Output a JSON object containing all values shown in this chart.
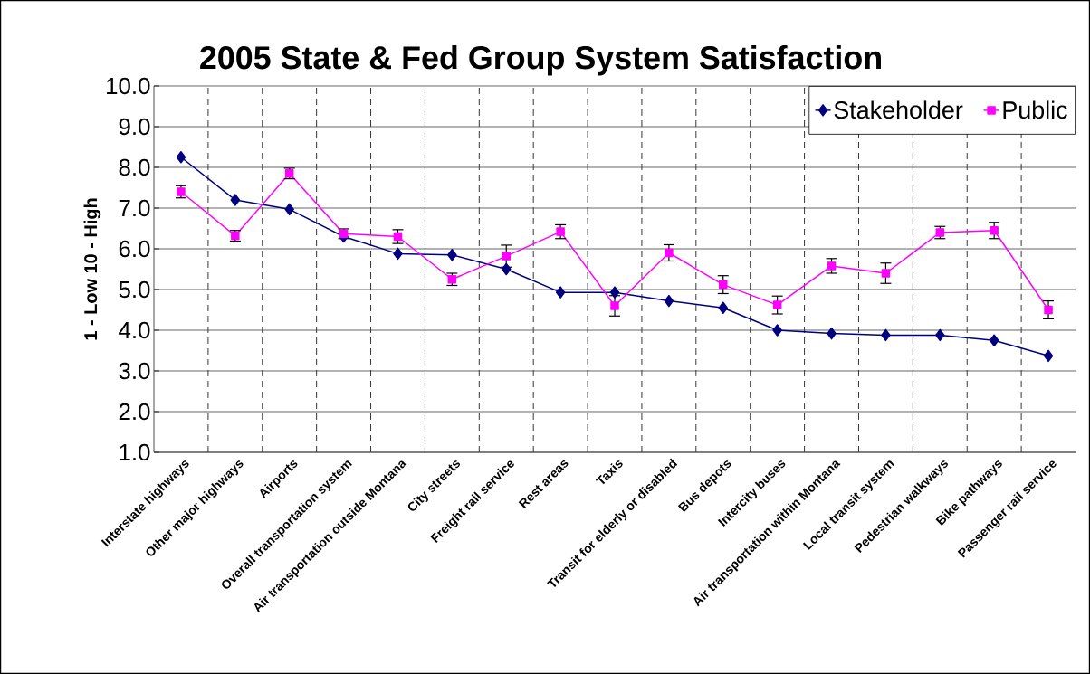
{
  "chart_data": {
    "type": "line",
    "title": "2005 State & Fed Group System Satisfaction",
    "ylabel": "1 - Low    10 - High",
    "categories": [
      "Interstate highways",
      "Other major highways",
      "Airports",
      "Overall transportation system",
      "Air transportation outside Montana",
      "City streets",
      "Freight rail service",
      "Rest areas",
      "Taxis",
      "Transit for elderly or disabled",
      "Bus depots",
      "Intercity buses",
      "Air transportation within Montana",
      "Local transit system",
      "Pedestrian walkways",
      "Bike pathways",
      "Passenger rail service"
    ],
    "series": [
      {
        "name": "Stakeholder",
        "color": "#000080",
        "marker": "diamond",
        "values": [
          8.25,
          7.2,
          6.97,
          6.3,
          5.88,
          5.85,
          5.5,
          4.93,
          4.93,
          4.72,
          4.55,
          4.0,
          3.92,
          3.88,
          3.88,
          3.75,
          3.37
        ]
      },
      {
        "name": "Public",
        "color": "#ff00ff",
        "marker": "square",
        "values": [
          7.4,
          6.32,
          7.85,
          6.37,
          6.3,
          5.25,
          5.82,
          6.42,
          4.6,
          5.9,
          5.12,
          4.62,
          5.58,
          5.4,
          6.4,
          6.45,
          4.5
        ],
        "errors": [
          0.15,
          0.13,
          0.13,
          0.12,
          0.17,
          0.15,
          0.27,
          0.17,
          0.25,
          0.2,
          0.22,
          0.22,
          0.18,
          0.25,
          0.15,
          0.2,
          0.22
        ]
      }
    ],
    "ylim": [
      1.0,
      10.0
    ],
    "yticks": [
      {
        "value": 1,
        "label": "1.0"
      },
      {
        "value": 2,
        "label": "2.0"
      },
      {
        "value": 3,
        "label": "3.0"
      },
      {
        "value": 4,
        "label": "4.0"
      },
      {
        "value": 5,
        "label": "5.0"
      },
      {
        "value": 6,
        "label": "6.0"
      },
      {
        "value": 7,
        "label": "7.0"
      },
      {
        "value": 8,
        "label": "8.0"
      },
      {
        "value": 9,
        "label": "9.0"
      },
      {
        "value": 10,
        "label": "10.0"
      }
    ],
    "grid": true,
    "legend": "top right",
    "line_style": "solid"
  }
}
